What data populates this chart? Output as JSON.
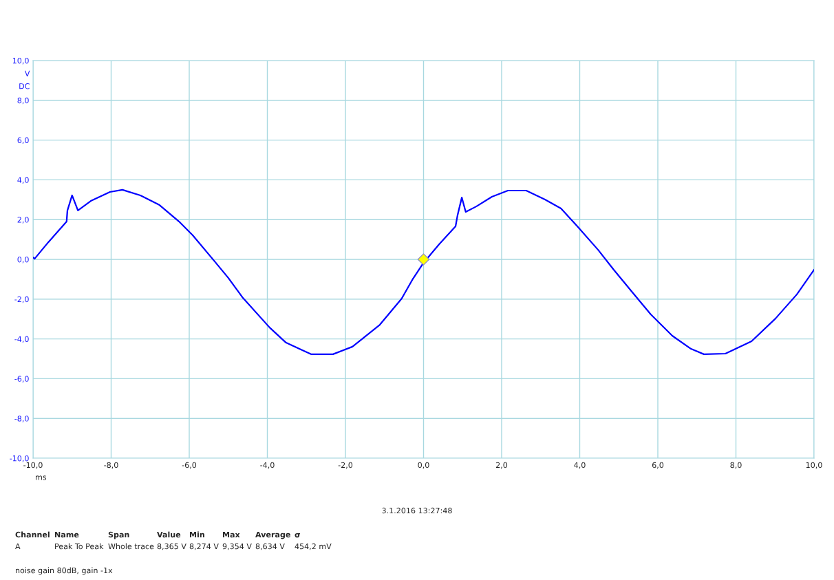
{
  "chart_data": {
    "type": "line",
    "xlabel": "ms",
    "ylabel": "V\nDC",
    "xlim": [
      -10,
      10
    ],
    "ylim": [
      -10,
      10
    ],
    "xticks": [
      {
        "value": -10,
        "label": "-10,0"
      },
      {
        "value": -8,
        "label": "-8,0"
      },
      {
        "value": -6,
        "label": "-6,0"
      },
      {
        "value": -4,
        "label": "-4,0"
      },
      {
        "value": -2,
        "label": "-2,0"
      },
      {
        "value": 0,
        "label": "0,0"
      },
      {
        "value": 2,
        "label": "2,0"
      },
      {
        "value": 4,
        "label": "4,0"
      },
      {
        "value": 6,
        "label": "6,0"
      },
      {
        "value": 8,
        "label": "8,0"
      },
      {
        "value": 10,
        "label": "10,0"
      }
    ],
    "yticks": [
      {
        "value": -10,
        "label": "-10,0"
      },
      {
        "value": -8,
        "label": "-8,0"
      },
      {
        "value": -6,
        "label": "-6,0"
      },
      {
        "value": -4,
        "label": "-4,0"
      },
      {
        "value": -2,
        "label": "-2,0"
      },
      {
        "value": 0,
        "label": "0,0"
      },
      {
        "value": 2,
        "label": "2,0"
      },
      {
        "value": 4,
        "label": "4,0"
      },
      {
        "value": 6,
        "label": "6,0"
      },
      {
        "value": 8,
        "label": "8,0"
      },
      {
        "value": 10,
        "label": "10,0"
      }
    ],
    "grid": true,
    "series": [
      {
        "color": "#0000ff",
        "x": [
          -10,
          -9.96,
          -9.61,
          -9.14,
          -9.12,
          -9.0,
          -8.85,
          -8.52,
          -8.03,
          -7.71,
          -7.25,
          -6.76,
          -6.26,
          -5.91,
          -5.35,
          -5.0,
          -4.64,
          -3.94,
          -3.52,
          -2.88,
          -2.32,
          -1.82,
          -1.12,
          -0.56,
          -0.27,
          0.0,
          0.4,
          0.82,
          0.87,
          0.98,
          1.08,
          1.35,
          1.75,
          2.16,
          2.63,
          3.11,
          3.52,
          3.92,
          4.47,
          4.87,
          5.35,
          5.82,
          6.37,
          6.85,
          7.18,
          7.73,
          8.4,
          9.01,
          9.56,
          10.0
        ],
        "values": [
          0.1,
          0.03,
          0.86,
          1.9,
          2.45,
          3.22,
          2.46,
          2.94,
          3.39,
          3.5,
          3.22,
          2.73,
          1.9,
          1.21,
          -0.1,
          -0.93,
          -1.9,
          -3.43,
          -4.19,
          -4.77,
          -4.77,
          -4.39,
          -3.29,
          -1.97,
          -0.97,
          -0.17,
          0.76,
          1.66,
          2.21,
          3.11,
          2.39,
          2.66,
          3.15,
          3.46,
          3.46,
          3.01,
          2.56,
          1.7,
          0.48,
          -0.52,
          -1.66,
          -2.77,
          -3.84,
          -4.5,
          -4.77,
          -4.74,
          -4.12,
          -2.98,
          -1.76,
          -0.52
        ]
      },
      {
        "type": "scatter",
        "color": "#ffff00",
        "marker": "diamond",
        "x": [
          0
        ],
        "values": [
          0
        ]
      }
    ],
    "annotations": [
      "3.1.2016 13:27:48",
      "Channel",
      "Name",
      "Span",
      "Value",
      "Min",
      "Max",
      "Average",
      "σ",
      "A",
      "Peak To Peak",
      "Whole trace",
      "8,365 V",
      "8,274 V",
      "9,354 V",
      "8,634 V",
      "454,2 mV",
      "noise gain 80dB, gain -1x"
    ]
  }
}
